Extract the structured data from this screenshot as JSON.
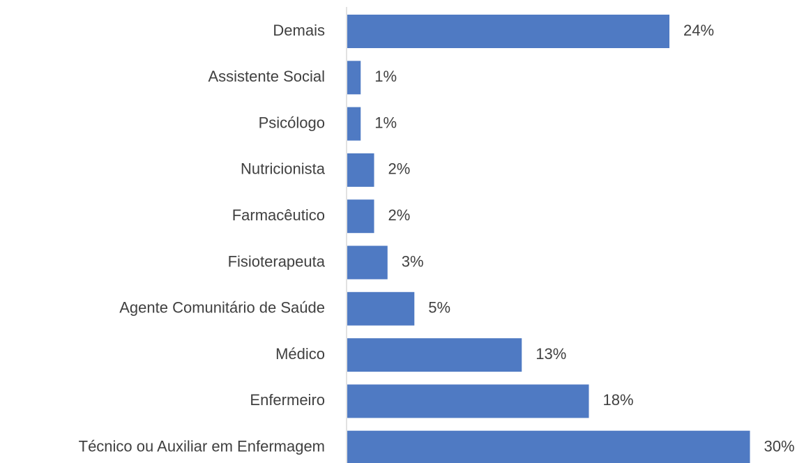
{
  "chart_data": {
    "type": "bar",
    "orientation": "horizontal",
    "categories": [
      "Demais",
      "Assistente Social",
      "Psicólogo",
      "Nutricionista",
      "Farmacêutico",
      "Fisioterapeuta",
      "Agente Comunitário de Saúde",
      "Médico",
      "Enfermeiro",
      "Técnico ou Auxiliar em Enfermagem"
    ],
    "values": [
      24,
      1,
      1,
      2,
      2,
      3,
      5,
      13,
      18,
      30
    ],
    "value_labels": [
      "24%",
      "1%",
      "1%",
      "2%",
      "2%",
      "3%",
      "5%",
      "13%",
      "18%",
      "30%"
    ],
    "color": "#4f7ac3"
  }
}
